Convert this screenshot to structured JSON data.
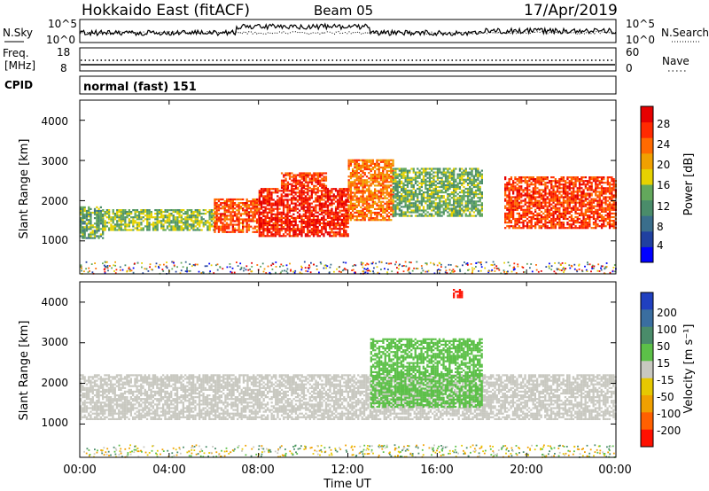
{
  "header": {
    "title": "Hokkaido East (fitACF)",
    "beam": "Beam 05",
    "date": "17/Apr/2019"
  },
  "noise_panel": {
    "left_label": "N.Sky",
    "right_label": "N.Search",
    "ticks_left": [
      "10^5",
      "10^0"
    ],
    "ticks_right": [
      "10^5",
      "10^0"
    ]
  },
  "freq_panel": {
    "label_line1": "Freq.",
    "label_line2": "[MHz]",
    "ticks_left": [
      "18",
      "8"
    ],
    "ticks_right": [
      "60",
      "0"
    ],
    "right_label": "Nave"
  },
  "cpid_panel": {
    "label": "CPID",
    "value": "normal (fast) 151"
  },
  "power_panel": {
    "ylabel": "Slant Range [km]",
    "yticks": [
      "1000",
      "2000",
      "3000",
      "4000"
    ],
    "colorbar_label": "Power [dB]",
    "colorbar_ticks": [
      "4",
      "8",
      "12",
      "16",
      "20",
      "24",
      "28"
    ],
    "colors": [
      "#0000ff",
      "#2040a0",
      "#3a6e8c",
      "#4a8c6a",
      "#63a85c",
      "#e6d200",
      "#f0a000",
      "#ff6a00",
      "#ff2a00",
      "#e60000"
    ]
  },
  "velocity_panel": {
    "ylabel": "Slant Range [km]",
    "yticks": [
      "1000",
      "2000",
      "3000",
      "4000"
    ],
    "colorbar_label": "Velocity [m s⁻¹]",
    "colorbar_ticks": [
      "200",
      "100",
      "50",
      "15",
      "-15",
      "-50",
      "-100",
      "-200"
    ],
    "colors": [
      "#2040c0",
      "#3a6ea0",
      "#4a8c6a",
      "#5cc048",
      "#c8c8c0",
      "#e6c800",
      "#f0a000",
      "#ff6000",
      "#ff1000"
    ]
  },
  "x_axis": {
    "ticks": [
      "00:00",
      "04:00",
      "08:00",
      "12:00",
      "16:00",
      "20:00",
      "00:00"
    ],
    "label": "Time UT"
  },
  "chart_data": {
    "type": "heatmap",
    "xlabel": "Time UT",
    "ylabel": "Slant Range [km]",
    "x_range_hours": [
      0,
      24
    ],
    "y_range_km": [
      180,
      4500
    ],
    "power_colorbar_range_db": [
      0,
      30
    ],
    "velocity_colorbar_range": [
      -250,
      250
    ],
    "power_regions": [
      {
        "t": [
          0,
          1
        ],
        "r": [
          1050,
          1850
        ],
        "db": 12
      },
      {
        "t": [
          1,
          6
        ],
        "r": [
          1250,
          1750
        ],
        "db": 14
      },
      {
        "t": [
          6,
          8
        ],
        "r": [
          1200,
          2050
        ],
        "db": 24
      },
      {
        "t": [
          8,
          12
        ],
        "r": [
          1100,
          2300
        ],
        "db": 27
      },
      {
        "t": [
          9,
          11
        ],
        "r": [
          2300,
          2700
        ],
        "db": 25
      },
      {
        "t": [
          12,
          14
        ],
        "r": [
          1500,
          3000
        ],
        "db": 22
      },
      {
        "t": [
          14,
          18
        ],
        "r": [
          1600,
          2800
        ],
        "db": 13
      },
      {
        "t": [
          19,
          24
        ],
        "r": [
          1300,
          2600
        ],
        "db": 25
      }
    ],
    "velocity_regions": [
      {
        "t": [
          0,
          24
        ],
        "r": [
          1100,
          2200
        ],
        "v": 0
      },
      {
        "t": [
          13,
          18
        ],
        "r": [
          1400,
          3100
        ],
        "v": 30
      },
      {
        "t": [
          16.7,
          17.1
        ],
        "r": [
          4100,
          4300
        ],
        "v": -220
      }
    ]
  }
}
